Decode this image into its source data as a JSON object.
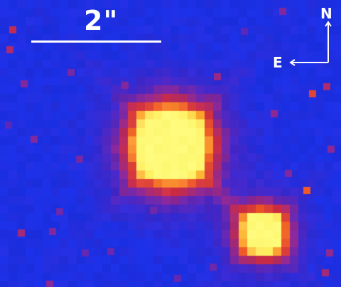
{
  "image": {
    "description_kind": "false-color astronomical image",
    "colors": {
      "background": "#1f33e6",
      "core": "#fff566",
      "halo_inner": "#ff7a33",
      "halo_mid": "#d2303c",
      "halo_outer": "#8a2a9a",
      "annotation": "#ffffff"
    }
  },
  "scale_bar": {
    "label": "2\""
  },
  "compass": {
    "north_label": "N",
    "east_label": "E"
  }
}
